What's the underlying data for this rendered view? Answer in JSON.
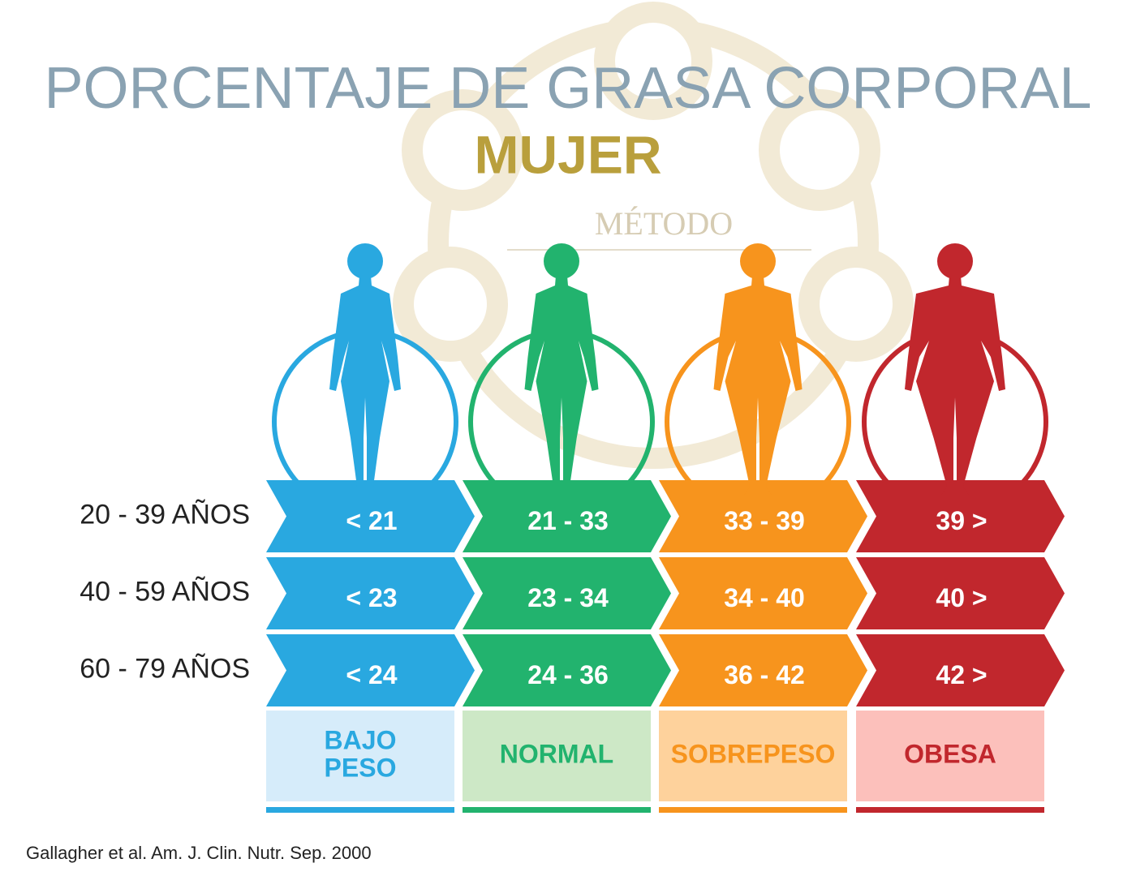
{
  "title": "PORCENTAJE DE GRASA CORPORAL",
  "subtitle": "MUJER",
  "watermark": "MÉTODO",
  "categories": [
    {
      "label_lines": [
        "BAJO",
        "PESO"
      ],
      "color": "#29a8e0",
      "light": "#d6ecfa"
    },
    {
      "label_lines": [
        "NORMAL"
      ],
      "color": "#22b36e",
      "light": "#cde8c6"
    },
    {
      "label_lines": [
        "SOBREPESO"
      ],
      "color": "#f7941d",
      "light": "#fed29c"
    },
    {
      "label_lines": [
        "OBESA"
      ],
      "color": "#c1272d",
      "light": "#fcc0bb"
    }
  ],
  "rows": [
    {
      "label": "20 - 39 AÑOS",
      "cells": [
        "< 21",
        "21 - 33",
        "33 - 39",
        "39 >"
      ]
    },
    {
      "label": "40 - 59 AÑOS",
      "cells": [
        "< 23",
        "23 - 34",
        "34 - 40",
        "40 >"
      ]
    },
    {
      "label": "60 - 79 AÑOS",
      "cells": [
        "< 24",
        "24 - 36",
        "36 - 42",
        "42 >"
      ]
    }
  ],
  "source": "Gallagher et al. Am. J. Clin. Nutr. Sep. 2000"
}
